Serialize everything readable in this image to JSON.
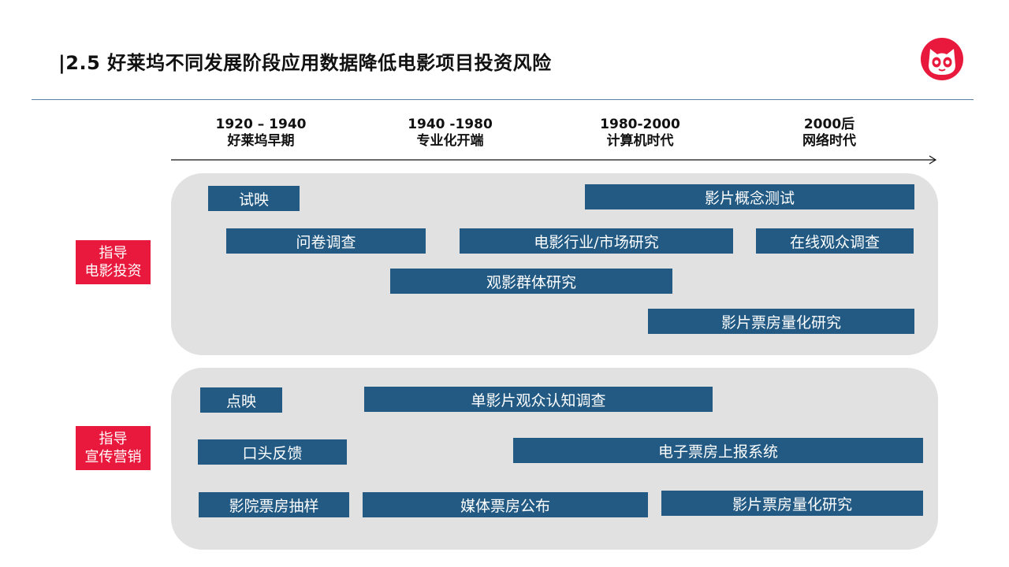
{
  "title": "|2.5 好莱坞不同发展阶段应用数据降低电影项目投资风险",
  "eras": [
    {
      "years": "1920 – 1940",
      "name": "好莱坞早期"
    },
    {
      "years": "1940 -1980",
      "name": "专业化开端"
    },
    {
      "years": "1980-2000",
      "name": "计算机时代"
    },
    {
      "years": "2000后",
      "name": "网络时代"
    }
  ],
  "sections": [
    {
      "label_line1": "指导",
      "label_line2": "电影投资",
      "bars": [
        "试映",
        "影片概念测试",
        "问卷调查",
        "电影行业/市场研究",
        "在线观众调查",
        "观影群体研究",
        "影片票房量化研究"
      ]
    },
    {
      "label_line1": "指导",
      "label_line2": "宣传营销",
      "bars": [
        "点映",
        "单影片观众认知调查",
        "口头反馈",
        "电子票房上报系统",
        "影院票房抽样",
        "媒体票房公布",
        "影片票房量化研究"
      ]
    }
  ],
  "colors": {
    "bar": "#225a84",
    "label": "#e8193c",
    "panel": "#e1e1e1",
    "logo": "#e8193c"
  },
  "logo_icon": "cat-logo-icon"
}
